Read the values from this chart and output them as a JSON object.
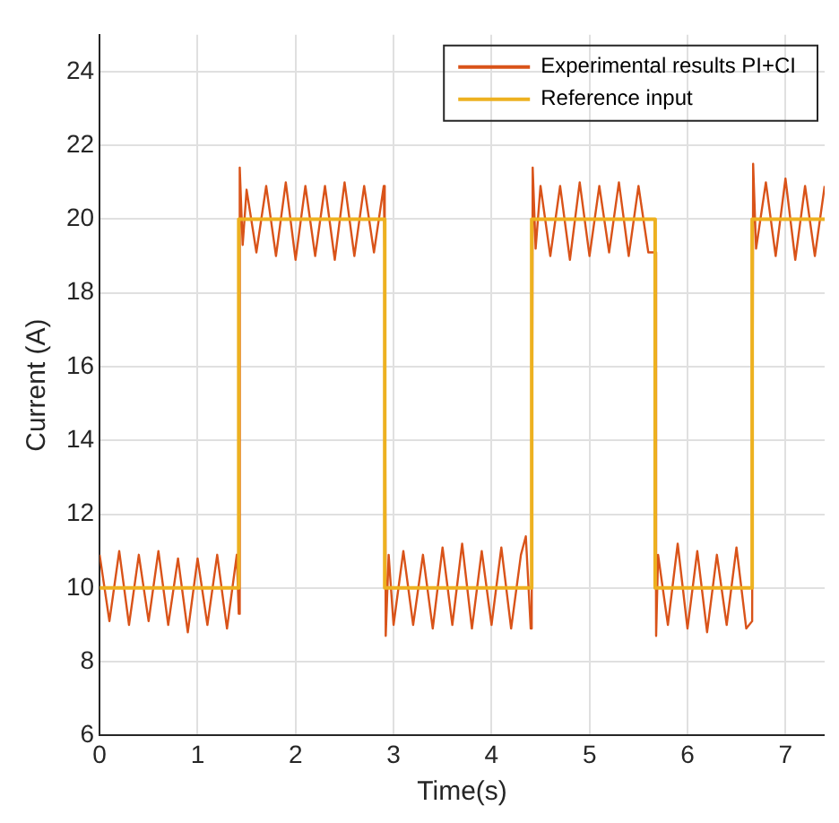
{
  "chart_data": {
    "type": "line",
    "xlabel": "Time(s)",
    "ylabel": "Current (A)",
    "xlim": [
      0,
      7.4
    ],
    "ylim": [
      6,
      25
    ],
    "xticks": [
      0,
      1,
      2,
      3,
      4,
      5,
      6,
      7
    ],
    "yticks": [
      6,
      8,
      10,
      12,
      14,
      16,
      18,
      20,
      22,
      24
    ],
    "grid": true,
    "legend": "top right",
    "marker": "none",
    "line_style": "solid",
    "series": [
      {
        "name": "Experimental results PI+CI",
        "color": "#d95319",
        "x": [
          0,
          0.1,
          0.2,
          0.3,
          0.4,
          0.5,
          0.6,
          0.7,
          0.8,
          0.9,
          1.0,
          1.1,
          1.2,
          1.3,
          1.4,
          1.42,
          1.43,
          1.46,
          1.5,
          1.6,
          1.7,
          1.8,
          1.9,
          2.0,
          2.1,
          2.2,
          2.3,
          2.4,
          2.5,
          2.6,
          2.7,
          2.8,
          2.9,
          2.91,
          2.92,
          2.95,
          3.0,
          3.1,
          3.2,
          3.3,
          3.4,
          3.5,
          3.6,
          3.7,
          3.8,
          3.9,
          4.0,
          4.1,
          4.2,
          4.3,
          4.35,
          4.4,
          4.41,
          4.42,
          4.45,
          4.5,
          4.6,
          4.7,
          4.8,
          4.9,
          5.0,
          5.1,
          5.2,
          5.3,
          5.4,
          5.5,
          5.6,
          5.67,
          5.68,
          5.7,
          5.8,
          5.9,
          6.0,
          6.1,
          6.2,
          6.3,
          6.4,
          6.5,
          6.6,
          6.66,
          6.67,
          6.7,
          6.8,
          6.9,
          7.0,
          7.1,
          7.2,
          7.3,
          7.4
        ],
        "values": [
          10.9,
          9.1,
          11.0,
          9.0,
          10.9,
          9.1,
          11.0,
          9.0,
          10.8,
          8.8,
          10.8,
          9.0,
          10.9,
          8.9,
          10.9,
          9.3,
          21.4,
          19.3,
          20.8,
          19.1,
          20.9,
          19.0,
          21.0,
          18.9,
          20.9,
          19.0,
          20.9,
          18.9,
          21.0,
          19.0,
          20.9,
          19.1,
          20.9,
          19.1,
          8.7,
          10.9,
          9.0,
          11.0,
          9.0,
          10.9,
          8.9,
          11.1,
          9.0,
          11.2,
          8.9,
          11.0,
          9.0,
          11.1,
          8.9,
          10.9,
          11.4,
          8.9,
          9.1,
          21.4,
          19.2,
          20.9,
          19.0,
          20.9,
          18.9,
          21.0,
          19.0,
          20.9,
          19.1,
          21.0,
          19.0,
          20.9,
          19.1,
          19.1,
          8.7,
          10.9,
          9.0,
          11.2,
          8.9,
          11.0,
          8.8,
          10.9,
          9.0,
          11.1,
          8.9,
          9.1,
          21.5,
          19.2,
          21.0,
          19.0,
          21.1,
          18.9,
          20.9,
          19.0,
          20.9
        ]
      },
      {
        "name": "Reference input",
        "color": "#edb120",
        "x": [
          0,
          1.42,
          1.42,
          2.91,
          2.91,
          4.41,
          4.41,
          5.67,
          5.67,
          6.66,
          6.66,
          7.4
        ],
        "values": [
          10,
          10,
          20,
          20,
          10,
          10,
          20,
          20,
          10,
          10,
          20,
          20
        ]
      }
    ]
  }
}
